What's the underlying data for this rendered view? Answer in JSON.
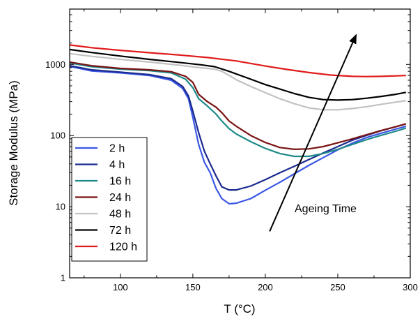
{
  "chart_data": {
    "type": "line",
    "title": "",
    "xlabel": "T (°C)",
    "ylabel": "Storage Modulus (MPa)",
    "xlim": [
      65,
      300
    ],
    "ylim": [
      1,
      6000
    ],
    "yscale": "log",
    "xticks": [
      "100",
      "150",
      "200",
      "250",
      "300"
    ],
    "yticks": [
      "1",
      "10",
      "100",
      "1000"
    ],
    "legend_position": "bottom-left",
    "grid": false,
    "annotation": {
      "text": "Ageing Time",
      "arrow_from": [
        203,
        4.5
      ],
      "arrow_to": [
        263,
        2700
      ]
    },
    "series": [
      {
        "name": "2 h",
        "color": "#3a57e6",
        "points": [
          [
            65,
            940
          ],
          [
            80,
            810
          ],
          [
            100,
            760
          ],
          [
            120,
            700
          ],
          [
            135,
            600
          ],
          [
            143,
            460
          ],
          [
            147,
            330
          ],
          [
            150,
            180
          ],
          [
            154,
            75
          ],
          [
            158,
            42
          ],
          [
            162,
            30
          ],
          [
            166,
            18
          ],
          [
            170,
            13
          ],
          [
            175,
            11
          ],
          [
            180,
            11.2
          ],
          [
            190,
            13
          ],
          [
            200,
            17
          ],
          [
            210,
            22
          ],
          [
            220,
            29
          ],
          [
            230,
            38
          ],
          [
            240,
            49
          ],
          [
            250,
            63
          ],
          [
            260,
            78
          ],
          [
            270,
            94
          ],
          [
            280,
            108
          ],
          [
            290,
            123
          ],
          [
            297,
            135
          ]
        ]
      },
      {
        "name": "4 h",
        "color": "#1a2a8e",
        "points": [
          [
            65,
            960
          ],
          [
            80,
            840
          ],
          [
            100,
            780
          ],
          [
            120,
            720
          ],
          [
            135,
            630
          ],
          [
            143,
            490
          ],
          [
            147,
            360
          ],
          [
            150,
            220
          ],
          [
            154,
            110
          ],
          [
            158,
            60
          ],
          [
            162,
            40
          ],
          [
            166,
            27
          ],
          [
            170,
            19
          ],
          [
            175,
            17.2
          ],
          [
            180,
            17.2
          ],
          [
            190,
            19.5
          ],
          [
            200,
            24
          ],
          [
            210,
            30
          ],
          [
            220,
            37
          ],
          [
            230,
            46
          ],
          [
            240,
            57
          ],
          [
            250,
            70
          ],
          [
            260,
            86
          ],
          [
            270,
            101
          ],
          [
            280,
            117
          ],
          [
            290,
            133
          ],
          [
            297,
            146
          ]
        ]
      },
      {
        "name": "16 h",
        "color": "#1f8a8a",
        "points": [
          [
            65,
            1050
          ],
          [
            80,
            930
          ],
          [
            100,
            860
          ],
          [
            120,
            820
          ],
          [
            135,
            760
          ],
          [
            145,
            620
          ],
          [
            150,
            470
          ],
          [
            154,
            330
          ],
          [
            160,
            260
          ],
          [
            166,
            200
          ],
          [
            170,
            160
          ],
          [
            175,
            125
          ],
          [
            180,
            105
          ],
          [
            190,
            82
          ],
          [
            200,
            66
          ],
          [
            210,
            56
          ],
          [
            220,
            51
          ],
          [
            230,
            51
          ],
          [
            240,
            56
          ],
          [
            250,
            64
          ],
          [
            260,
            75
          ],
          [
            270,
            88
          ],
          [
            280,
            101
          ],
          [
            290,
            115
          ],
          [
            297,
            127
          ]
        ]
      },
      {
        "name": "24 h",
        "color": "#7a1414",
        "points": [
          [
            65,
            1080
          ],
          [
            80,
            960
          ],
          [
            100,
            880
          ],
          [
            120,
            840
          ],
          [
            135,
            790
          ],
          [
            145,
            680
          ],
          [
            150,
            560
          ],
          [
            154,
            380
          ],
          [
            160,
            300
          ],
          [
            166,
            250
          ],
          [
            170,
            210
          ],
          [
            175,
            160
          ],
          [
            180,
            135
          ],
          [
            190,
            100
          ],
          [
            200,
            80
          ],
          [
            210,
            68
          ],
          [
            220,
            64
          ],
          [
            230,
            65
          ],
          [
            240,
            70
          ],
          [
            250,
            79
          ],
          [
            260,
            90
          ],
          [
            270,
            103
          ],
          [
            280,
            118
          ],
          [
            290,
            133
          ],
          [
            297,
            146
          ]
        ]
      },
      {
        "name": "48 h",
        "color": "#c2c2c2",
        "points": [
          [
            65,
            1420
          ],
          [
            80,
            1300
          ],
          [
            100,
            1180
          ],
          [
            120,
            1080
          ],
          [
            140,
            980
          ],
          [
            155,
            900
          ],
          [
            165,
            860
          ],
          [
            170,
            800
          ],
          [
            175,
            700
          ],
          [
            180,
            610
          ],
          [
            190,
            490
          ],
          [
            200,
            400
          ],
          [
            210,
            330
          ],
          [
            220,
            280
          ],
          [
            230,
            245
          ],
          [
            240,
            230
          ],
          [
            250,
            230
          ],
          [
            260,
            240
          ],
          [
            270,
            255
          ],
          [
            280,
            275
          ],
          [
            290,
            295
          ],
          [
            297,
            310
          ]
        ]
      },
      {
        "name": "72 h",
        "color": "#000000",
        "points": [
          [
            65,
            1620
          ],
          [
            80,
            1470
          ],
          [
            100,
            1310
          ],
          [
            120,
            1180
          ],
          [
            140,
            1070
          ],
          [
            155,
            990
          ],
          [
            165,
            930
          ],
          [
            175,
            800
          ],
          [
            190,
            620
          ],
          [
            200,
            520
          ],
          [
            210,
            450
          ],
          [
            220,
            390
          ],
          [
            230,
            345
          ],
          [
            240,
            320
          ],
          [
            250,
            315
          ],
          [
            260,
            320
          ],
          [
            270,
            335
          ],
          [
            280,
            355
          ],
          [
            290,
            380
          ],
          [
            297,
            405
          ]
        ]
      },
      {
        "name": "120 h",
        "color": "#e11b1b",
        "points": [
          [
            65,
            1880
          ],
          [
            80,
            1720
          ],
          [
            100,
            1580
          ],
          [
            120,
            1460
          ],
          [
            140,
            1360
          ],
          [
            160,
            1250
          ],
          [
            180,
            1120
          ],
          [
            200,
            950
          ],
          [
            215,
            850
          ],
          [
            230,
            770
          ],
          [
            245,
            710
          ],
          [
            260,
            680
          ],
          [
            270,
            675
          ],
          [
            280,
            680
          ],
          [
            290,
            690
          ],
          [
            297,
            700
          ]
        ]
      }
    ]
  }
}
